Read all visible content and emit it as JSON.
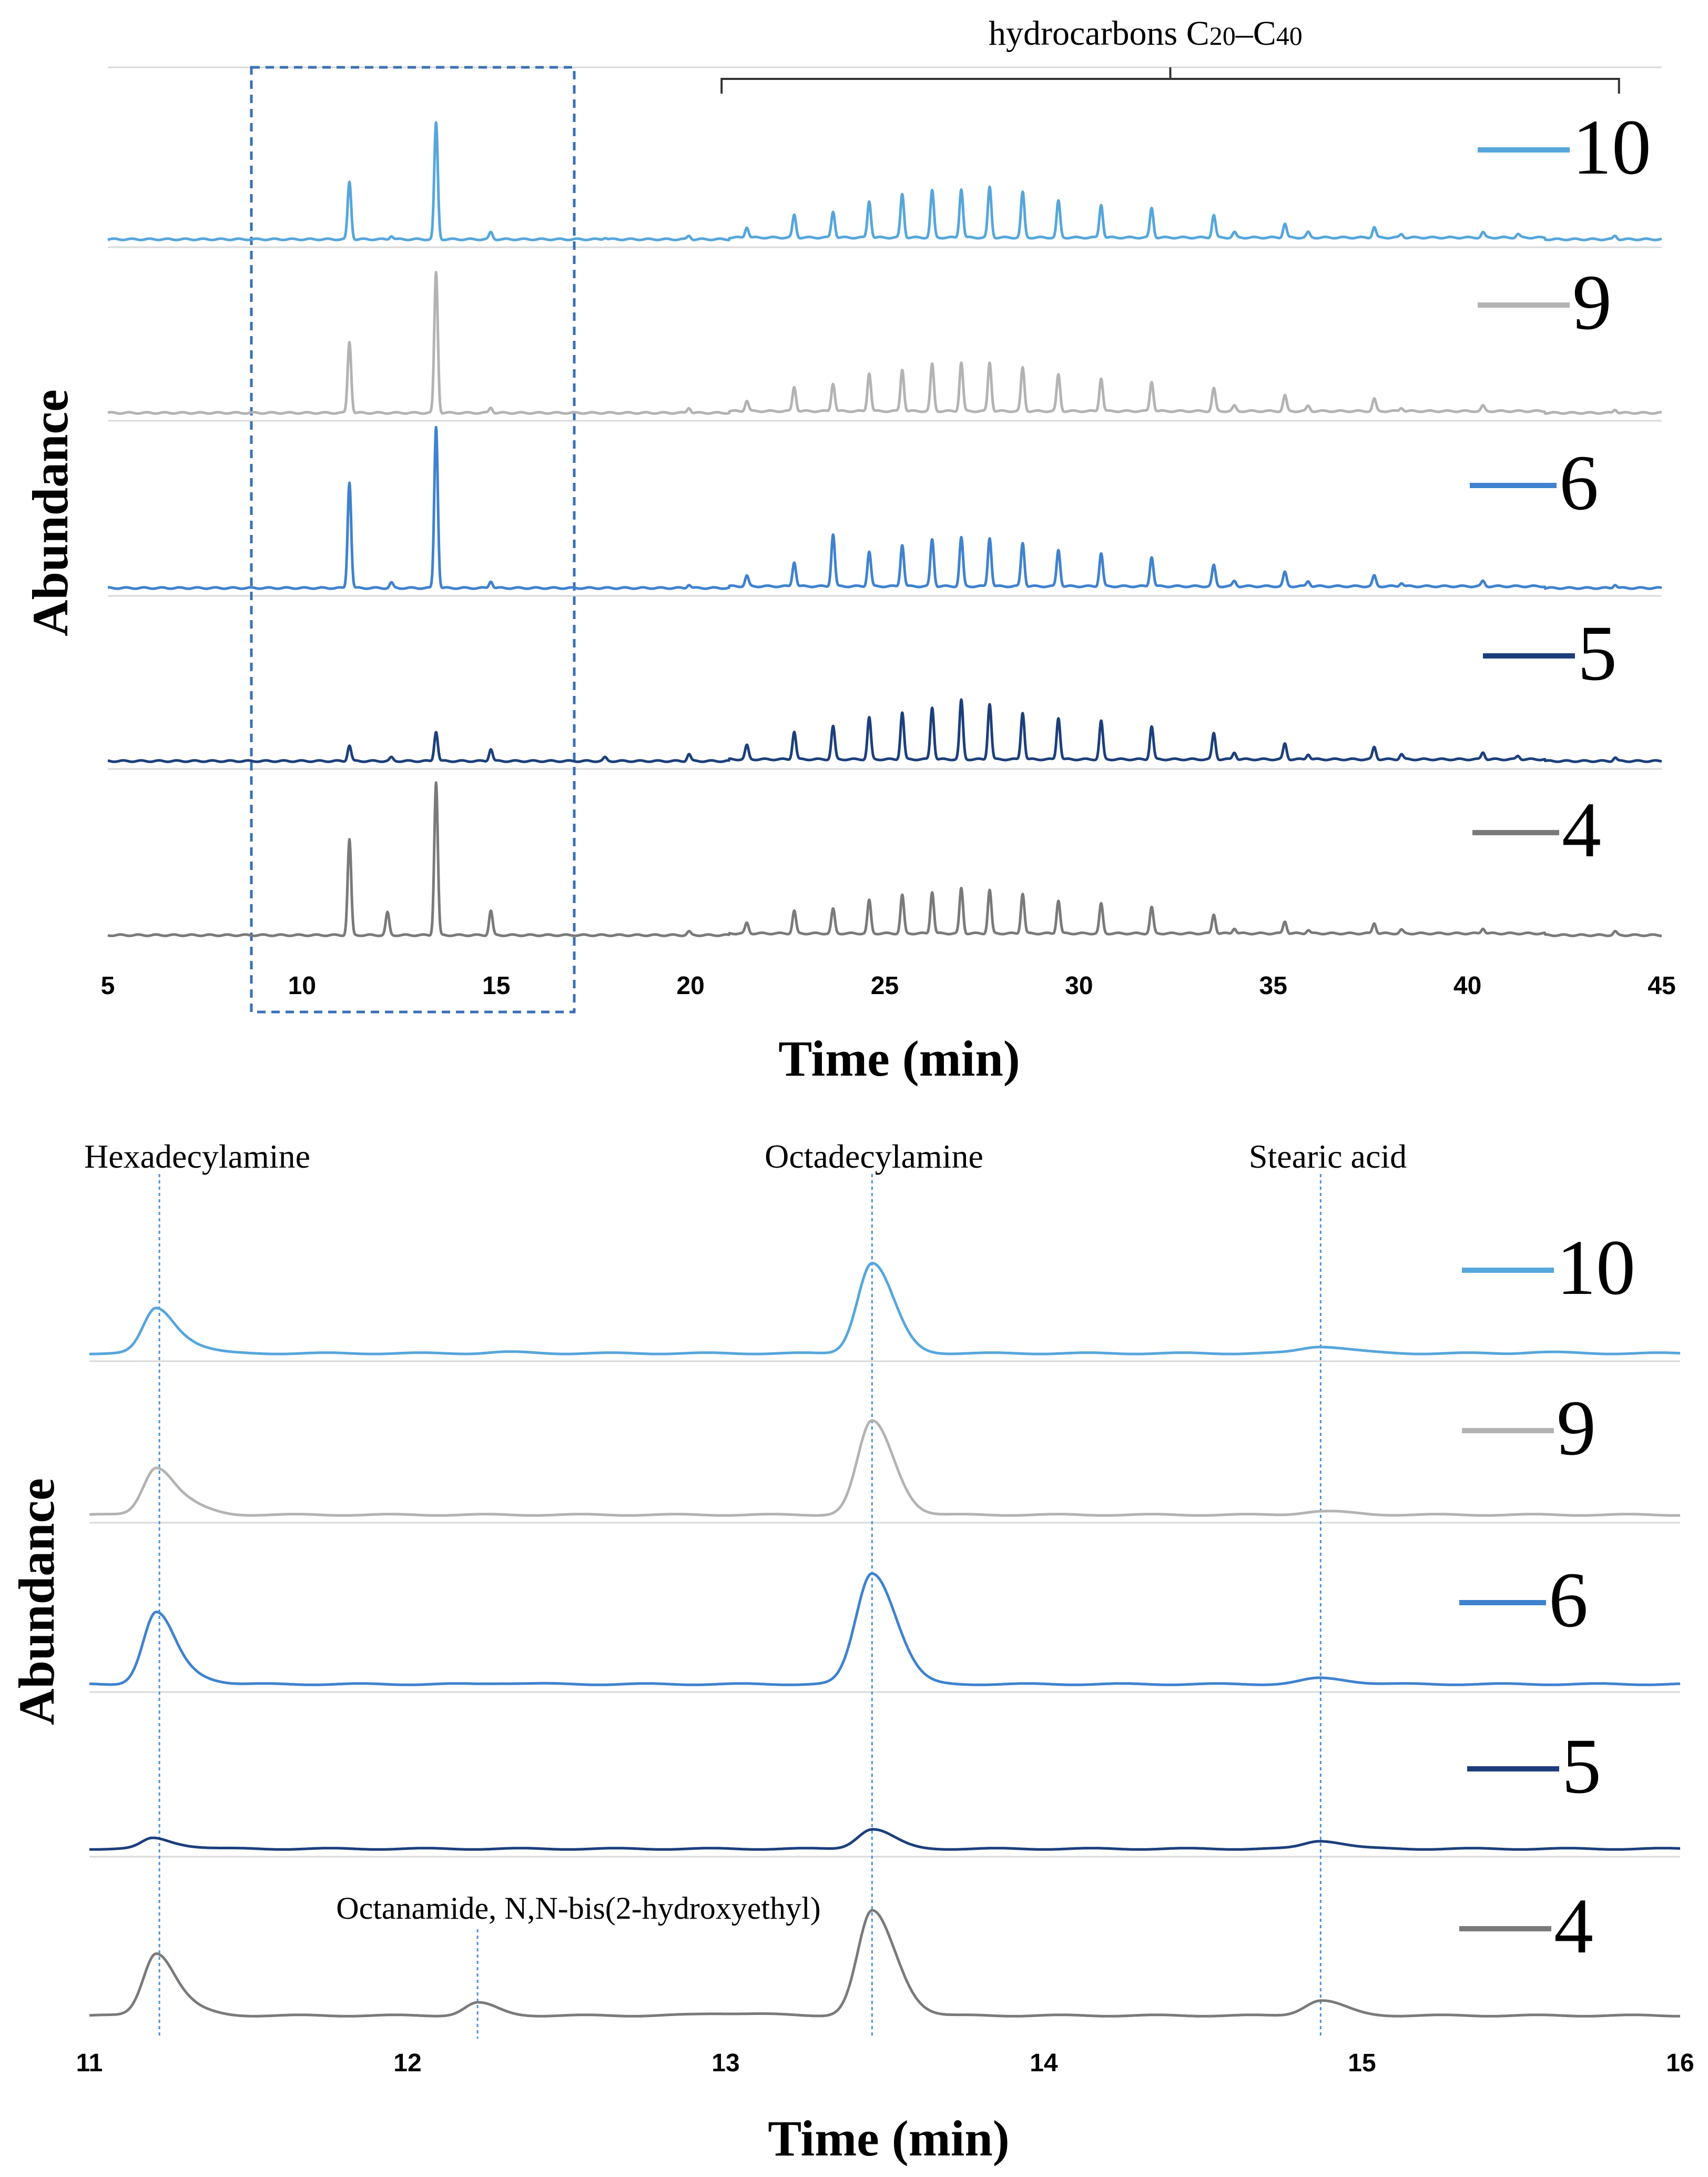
{
  "chart_data": [
    {
      "type": "line",
      "title": "",
      "xlabel": "Time (min)",
      "ylabel": "Abundance",
      "xlim": [
        5,
        45
      ],
      "x_ticks": [
        "5",
        "10",
        "15",
        "20",
        "25",
        "30",
        "35",
        "40",
        "45"
      ],
      "annotation": {
        "text": "hydrocarbons C",
        "sub1": "20",
        "dash": "–C",
        "sub2": "40",
        "x_range": [
          20.8,
          43.9
        ]
      },
      "highlight_region_x": [
        8.7,
        17.0
      ],
      "series": [
        {
          "name": "10",
          "color": "#56a6dc",
          "peaks": [
            [
              11.22,
              0.33
            ],
            [
              12.3,
              0.02
            ],
            [
              13.45,
              0.67
            ],
            [
              14.86,
              0.04
            ],
            [
              17.8,
              0.01
            ],
            [
              19.96,
              0.02
            ],
            [
              21.45,
              0.06
            ],
            [
              22.67,
              0.13
            ],
            [
              23.67,
              0.15
            ],
            [
              24.6,
              0.21
            ],
            [
              25.45,
              0.25
            ],
            [
              26.22,
              0.27
            ],
            [
              26.97,
              0.28
            ],
            [
              27.7,
              0.29
            ],
            [
              28.55,
              0.26
            ],
            [
              29.47,
              0.21
            ],
            [
              30.57,
              0.19
            ],
            [
              31.87,
              0.17
            ],
            [
              33.47,
              0.13
            ],
            [
              34.0,
              0.03
            ],
            [
              35.3,
              0.08
            ],
            [
              35.9,
              0.03
            ],
            [
              37.6,
              0.06
            ],
            [
              38.3,
              0.02
            ],
            [
              40.4,
              0.03
            ],
            [
              41.3,
              0.02
            ],
            [
              43.8,
              0.02
            ]
          ]
        },
        {
          "name": "9",
          "color": "#b3b3b3",
          "peaks": [
            [
              11.22,
              0.41
            ],
            [
              13.45,
              0.81
            ],
            [
              14.86,
              0.03
            ],
            [
              19.96,
              0.03
            ],
            [
              21.45,
              0.06
            ],
            [
              22.67,
              0.14
            ],
            [
              23.67,
              0.16
            ],
            [
              24.6,
              0.22
            ],
            [
              25.45,
              0.24
            ],
            [
              26.22,
              0.27
            ],
            [
              26.97,
              0.28
            ],
            [
              27.7,
              0.28
            ],
            [
              28.55,
              0.25
            ],
            [
              29.47,
              0.21
            ],
            [
              30.57,
              0.19
            ],
            [
              31.87,
              0.17
            ],
            [
              33.47,
              0.13
            ],
            [
              34.0,
              0.03
            ],
            [
              35.3,
              0.09
            ],
            [
              35.9,
              0.03
            ],
            [
              37.6,
              0.07
            ],
            [
              38.3,
              0.02
            ],
            [
              40.4,
              0.03
            ],
            [
              43.8,
              0.02
            ]
          ]
        },
        {
          "name": "6",
          "color": "#3f82cf",
          "peaks": [
            [
              11.22,
              0.61
            ],
            [
              12.3,
              0.03
            ],
            [
              13.45,
              0.93
            ],
            [
              14.86,
              0.04
            ],
            [
              19.96,
              0.02
            ],
            [
              21.45,
              0.06
            ],
            [
              22.67,
              0.14
            ],
            [
              23.67,
              0.3
            ],
            [
              24.6,
              0.2
            ],
            [
              25.45,
              0.24
            ],
            [
              26.22,
              0.27
            ],
            [
              26.97,
              0.28
            ],
            [
              27.7,
              0.28
            ],
            [
              28.55,
              0.25
            ],
            [
              29.47,
              0.21
            ],
            [
              30.57,
              0.19
            ],
            [
              31.87,
              0.17
            ],
            [
              33.47,
              0.12
            ],
            [
              34.0,
              0.03
            ],
            [
              35.3,
              0.08
            ],
            [
              35.9,
              0.03
            ],
            [
              37.6,
              0.06
            ],
            [
              38.3,
              0.02
            ],
            [
              40.4,
              0.03
            ],
            [
              43.8,
              0.02
            ]
          ]
        },
        {
          "name": "5",
          "color": "#1c3f7c",
          "peaks": [
            [
              11.22,
              0.09
            ],
            [
              12.3,
              0.02
            ],
            [
              13.45,
              0.17
            ],
            [
              14.86,
              0.07
            ],
            [
              17.8,
              0.02
            ],
            [
              19.96,
              0.04
            ],
            [
              21.45,
              0.08
            ],
            [
              22.67,
              0.16
            ],
            [
              23.67,
              0.19
            ],
            [
              24.6,
              0.24
            ],
            [
              25.45,
              0.27
            ],
            [
              26.22,
              0.3
            ],
            [
              26.97,
              0.34
            ],
            [
              27.7,
              0.32
            ],
            [
              28.55,
              0.27
            ],
            [
              29.47,
              0.24
            ],
            [
              30.57,
              0.22
            ],
            [
              31.87,
              0.19
            ],
            [
              33.47,
              0.15
            ],
            [
              34.0,
              0.04
            ],
            [
              35.3,
              0.09
            ],
            [
              35.9,
              0.03
            ],
            [
              37.6,
              0.07
            ],
            [
              38.3,
              0.03
            ],
            [
              40.4,
              0.04
            ],
            [
              41.3,
              0.02
            ],
            [
              43.8,
              0.02
            ]
          ]
        },
        {
          "name": "4",
          "color": "#7a7a7a",
          "peaks": [
            [
              11.22,
              0.55
            ],
            [
              12.2,
              0.13
            ],
            [
              13.45,
              0.88
            ],
            [
              14.86,
              0.14
            ],
            [
              19.96,
              0.02
            ],
            [
              21.45,
              0.06
            ],
            [
              22.67,
              0.13
            ],
            [
              23.67,
              0.14
            ],
            [
              24.6,
              0.19
            ],
            [
              25.45,
              0.22
            ],
            [
              26.22,
              0.24
            ],
            [
              26.97,
              0.26
            ],
            [
              27.7,
              0.25
            ],
            [
              28.55,
              0.23
            ],
            [
              29.47,
              0.19
            ],
            [
              30.57,
              0.17
            ],
            [
              31.87,
              0.15
            ],
            [
              33.47,
              0.11
            ],
            [
              34.0,
              0.03
            ],
            [
              35.3,
              0.07
            ],
            [
              35.9,
              0.02
            ],
            [
              37.6,
              0.06
            ],
            [
              38.3,
              0.02
            ],
            [
              40.4,
              0.03
            ],
            [
              43.8,
              0.02
            ]
          ]
        }
      ]
    },
    {
      "type": "line",
      "title": "",
      "xlabel": "Time (min)",
      "ylabel": "Abundance",
      "xlim": [
        11,
        16
      ],
      "x_ticks": [
        "11",
        "12",
        "13",
        "14",
        "15",
        "16"
      ],
      "compound_labels": [
        {
          "text": "Hexadecylamine",
          "x": 11.22
        },
        {
          "text": "Octadecylamine",
          "x": 13.46
        },
        {
          "text": "Stearic acid",
          "x": 14.87
        },
        {
          "text": "Octanamide, N,N-bis(2-hydroxyethyl)",
          "x": 12.22
        }
      ],
      "series": [
        {
          "name": "10",
          "color": "#56a6dc",
          "peaks": [
            [
              11.21,
              0.39,
              0.04
            ],
            [
              11.33,
              0.05,
              0.04
            ],
            [
              12.3,
              0.01,
              0.05
            ],
            [
              13.46,
              0.78,
              0.045
            ],
            [
              14.87,
              0.06,
              0.06
            ],
            [
              15.55,
              0.01,
              0.05
            ]
          ]
        },
        {
          "name": "9",
          "color": "#b3b3b3",
          "peaks": [
            [
              11.21,
              0.41,
              0.04
            ],
            [
              11.33,
              0.06,
              0.04
            ],
            [
              13.46,
              0.81,
              0.045
            ],
            [
              14.87,
              0.03,
              0.06
            ]
          ]
        },
        {
          "name": "6",
          "color": "#3f82cf",
          "peaks": [
            [
              11.21,
              0.62,
              0.04
            ],
            [
              11.34,
              0.05,
              0.04
            ],
            [
              12.3,
              0.01,
              0.05
            ],
            [
              13.46,
              0.96,
              0.05
            ],
            [
              14.87,
              0.05,
              0.06
            ]
          ]
        },
        {
          "name": "5",
          "color": "#1c3f7c",
          "peaks": [
            [
              11.2,
              0.09,
              0.035
            ],
            [
              11.3,
              0.02,
              0.04
            ],
            [
              13.46,
              0.17,
              0.045
            ],
            [
              14.87,
              0.07,
              0.05
            ]
          ]
        },
        {
          "name": "4",
          "color": "#7a7a7a",
          "peaks": [
            [
              11.21,
              0.54,
              0.04
            ],
            [
              11.33,
              0.05,
              0.04
            ],
            [
              12.22,
              0.11,
              0.04
            ],
            [
              13.0,
              0.02,
              0.08
            ],
            [
              13.46,
              0.9,
              0.045
            ],
            [
              13.56,
              0.06,
              0.04
            ],
            [
              14.87,
              0.13,
              0.05
            ]
          ]
        }
      ]
    }
  ]
}
